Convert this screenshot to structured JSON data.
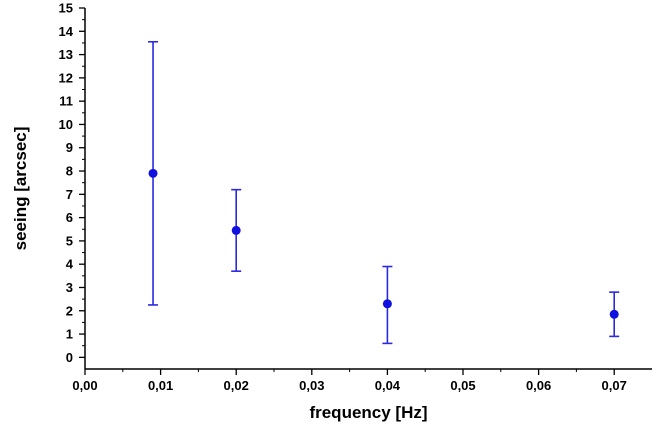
{
  "chart_data": {
    "type": "scatter",
    "title": "",
    "xlabel": "frequency [Hz]",
    "ylabel": "seeing [arcsec]",
    "xlim": [
      0,
      0.075
    ],
    "ylim": [
      -0.5,
      15
    ],
    "x_ticks": [
      0,
      0.01,
      0.02,
      0.03,
      0.04,
      0.05,
      0.06,
      0.07
    ],
    "x_tick_labels": [
      "0,00",
      "0,01",
      "0,02",
      "0,03",
      "0,04",
      "0,05",
      "0,06",
      "0,07"
    ],
    "y_ticks": [
      0,
      1,
      2,
      3,
      4,
      5,
      6,
      7,
      8,
      9,
      10,
      11,
      12,
      13,
      14,
      15
    ],
    "y_tick_labels": [
      "0",
      "1",
      "2",
      "3",
      "4",
      "5",
      "6",
      "7",
      "8",
      "9",
      "10",
      "11",
      "12",
      "13",
      "14",
      "15"
    ],
    "grid": false,
    "legend": false,
    "marker_color": "#1010e0",
    "errorbar_color": "#2a2ae0",
    "series": [
      {
        "x": [
          0.009,
          0.02,
          0.04,
          0.07
        ],
        "y": [
          7.9,
          5.45,
          2.3,
          1.85
        ],
        "y_low": [
          2.25,
          3.7,
          0.6,
          0.9
        ],
        "y_high": [
          13.55,
          7.2,
          3.9,
          2.8
        ]
      }
    ]
  }
}
